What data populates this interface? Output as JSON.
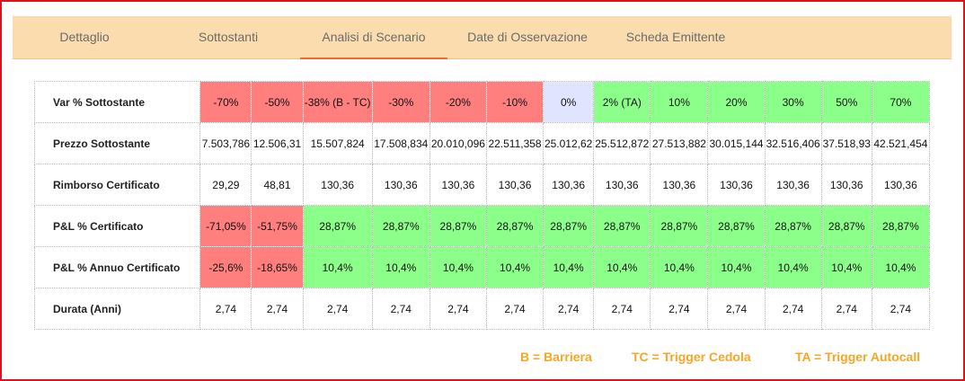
{
  "tabs": [
    {
      "label": "Dettaglio",
      "active": false
    },
    {
      "label": "Sottostanti",
      "active": false
    },
    {
      "label": "Analisi di Scenario",
      "active": true
    },
    {
      "label": "Date di Osservazione",
      "active": false
    },
    {
      "label": "Scheda Emittente",
      "active": false
    }
  ],
  "colors": {
    "red": "#ff7f7f",
    "green": "#8cff8a",
    "lavender": "#e0e4ff",
    "white": "#ffffff",
    "accent": "#f26a2e",
    "legend": "#f5a623",
    "tabbar": "#fbdcaf"
  },
  "scenario": {
    "rows": [
      {
        "label": "Var % Sottostante",
        "cells": [
          "-70%",
          "-50%",
          "-38% (B - TC)",
          "-30%",
          "-20%",
          "-10%",
          "0%",
          "2% (TA)",
          "10%",
          "20%",
          "30%",
          "50%",
          "70%"
        ],
        "colors": [
          "red",
          "red",
          "red",
          "red",
          "red",
          "red",
          "lavender",
          "green",
          "green",
          "green",
          "green",
          "green",
          "green"
        ]
      },
      {
        "label": "Prezzo Sottostante",
        "cells": [
          "7.503,786",
          "12.506,31",
          "15.507,824",
          "17.508,834",
          "20.010,096",
          "22.511,358",
          "25.012,62",
          "25.512,872",
          "27.513,882",
          "30.015,144",
          "32.516,406",
          "37.518,93",
          "42.521,454"
        ],
        "colors": [
          "white",
          "white",
          "white",
          "white",
          "white",
          "white",
          "white",
          "white",
          "white",
          "white",
          "white",
          "white",
          "white"
        ]
      },
      {
        "label": "Rimborso Certificato",
        "cells": [
          "29,29",
          "48,81",
          "130,36",
          "130,36",
          "130,36",
          "130,36",
          "130,36",
          "130,36",
          "130,36",
          "130,36",
          "130,36",
          "130,36",
          "130,36"
        ],
        "colors": [
          "white",
          "white",
          "white",
          "white",
          "white",
          "white",
          "white",
          "white",
          "white",
          "white",
          "white",
          "white",
          "white"
        ]
      },
      {
        "label": "P&L % Certificato",
        "cells": [
          "-71,05%",
          "-51,75%",
          "28,87%",
          "28,87%",
          "28,87%",
          "28,87%",
          "28,87%",
          "28,87%",
          "28,87%",
          "28,87%",
          "28,87%",
          "28,87%",
          "28,87%"
        ],
        "colors": [
          "red",
          "red",
          "green",
          "green",
          "green",
          "green",
          "green",
          "green",
          "green",
          "green",
          "green",
          "green",
          "green"
        ]
      },
      {
        "label": "P&L % Annuo Certificato",
        "cells": [
          "-25,6%",
          "-18,65%",
          "10,4%",
          "10,4%",
          "10,4%",
          "10,4%",
          "10,4%",
          "10,4%",
          "10,4%",
          "10,4%",
          "10,4%",
          "10,4%",
          "10,4%"
        ],
        "colors": [
          "red",
          "red",
          "green",
          "green",
          "green",
          "green",
          "green",
          "green",
          "green",
          "green",
          "green",
          "green",
          "green"
        ]
      },
      {
        "label": "Durata (Anni)",
        "cells": [
          "2,74",
          "2,74",
          "2,74",
          "2,74",
          "2,74",
          "2,74",
          "2,74",
          "2,74",
          "2,74",
          "2,74",
          "2,74",
          "2,74",
          "2,74"
        ],
        "colors": [
          "white",
          "white",
          "white",
          "white",
          "white",
          "white",
          "white",
          "white",
          "white",
          "white",
          "white",
          "white",
          "white"
        ]
      }
    ]
  },
  "legend": {
    "barriera": "B = Barriera",
    "trigger_cedola": "TC = Trigger Cedola",
    "trigger_autocall": "TA = Trigger Autocall"
  }
}
